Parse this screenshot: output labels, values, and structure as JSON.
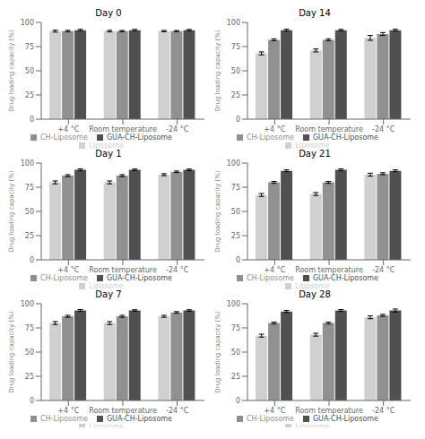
{
  "chart_data": [
    {
      "type": "bar",
      "title": "Day 0",
      "categories": [
        "+4 °C",
        "Room temperature",
        "-24 °C"
      ],
      "ylabel": "Drug loading capacity (%)",
      "ylim": [
        0,
        100
      ],
      "yticks": [
        0,
        25,
        50,
        75,
        100
      ],
      "grid": false,
      "legend": "bottom",
      "series": [
        {
          "name": "Liposome",
          "color": "#d0d0d0",
          "values": [
            91,
            91,
            91
          ],
          "errors": [
            1.0,
            0.8,
            0.7
          ]
        },
        {
          "name": "CH-Liposome",
          "color": "#909090",
          "values": [
            91,
            91,
            91
          ],
          "errors": [
            0.8,
            0.7,
            0.6
          ]
        },
        {
          "name": "GUA-CH-Liposome",
          "color": "#505050",
          "values": [
            92,
            92,
            92
          ],
          "errors": [
            0.9,
            0.8,
            0.7
          ]
        }
      ]
    },
    {
      "type": "bar",
      "title": "Day 14",
      "categories": [
        "+4 °C",
        "Room temperature",
        "-24 °C"
      ],
      "ylabel": "Drug loading capacity (%)",
      "ylim": [
        0,
        100
      ],
      "yticks": [
        0,
        25,
        50,
        75,
        100
      ],
      "grid": false,
      "legend": "bottom",
      "series": [
        {
          "name": "Liposome",
          "color": "#d0d0d0",
          "values": [
            68,
            71,
            84
          ],
          "errors": [
            1.5,
            1.5,
            2.5
          ]
        },
        {
          "name": "CH-Liposome",
          "color": "#909090",
          "values": [
            82,
            82,
            88
          ],
          "errors": [
            1.0,
            1.0,
            1.5
          ]
        },
        {
          "name": "GUA-CH-Liposome",
          "color": "#505050",
          "values": [
            92,
            92,
            92
          ],
          "errors": [
            1.0,
            0.8,
            1.0
          ]
        }
      ]
    },
    {
      "type": "bar",
      "title": "Day 1",
      "categories": [
        "+4 °C",
        "Room temperature",
        "-24 °C"
      ],
      "ylabel": "Drug loading capacity (%)",
      "ylim": [
        0,
        100
      ],
      "yticks": [
        0,
        25,
        50,
        75,
        100
      ],
      "grid": false,
      "legend": "bottom",
      "series": [
        {
          "name": "Liposome",
          "color": "#d0d0d0",
          "values": [
            80,
            80,
            88
          ],
          "errors": [
            1.5,
            1.5,
            1.0
          ]
        },
        {
          "name": "CH-Liposome",
          "color": "#909090",
          "values": [
            87,
            87,
            91
          ],
          "errors": [
            1.0,
            1.0,
            0.8
          ]
        },
        {
          "name": "GUA-CH-Liposome",
          "color": "#505050",
          "values": [
            93,
            93,
            93
          ],
          "errors": [
            1.0,
            0.8,
            0.8
          ]
        }
      ]
    },
    {
      "type": "bar",
      "title": "Day 21",
      "categories": [
        "+4 °C",
        "Room temperature",
        "-24 °C"
      ],
      "ylabel": "Drug loading capacity (%)",
      "ylim": [
        0,
        100
      ],
      "yticks": [
        0,
        25,
        50,
        75,
        100
      ],
      "grid": false,
      "legend": "bottom",
      "series": [
        {
          "name": "Liposome",
          "color": "#d0d0d0",
          "values": [
            67,
            68,
            88
          ],
          "errors": [
            1.5,
            1.5,
            1.5
          ]
        },
        {
          "name": "CH-Liposome",
          "color": "#909090",
          "values": [
            80,
            80,
            89
          ],
          "errors": [
            1.0,
            1.0,
            1.0
          ]
        },
        {
          "name": "GUA-CH-Liposome",
          "color": "#505050",
          "values": [
            92,
            93,
            92
          ],
          "errors": [
            1.0,
            1.0,
            1.0
          ]
        }
      ]
    },
    {
      "type": "bar",
      "title": "Day 7",
      "categories": [
        "+4 °C",
        "Room temperature",
        "-24 °C"
      ],
      "ylabel": "Drug loading capacity (%)",
      "ylim": [
        0,
        100
      ],
      "yticks": [
        0,
        25,
        50,
        75,
        100
      ],
      "grid": false,
      "legend": "bottom",
      "series": [
        {
          "name": "Liposome",
          "color": "#d0d0d0",
          "values": [
            80,
            80,
            87
          ],
          "errors": [
            1.5,
            1.5,
            1.0
          ]
        },
        {
          "name": "CH-Liposome",
          "color": "#909090",
          "values": [
            87,
            87,
            91
          ],
          "errors": [
            1.0,
            1.0,
            0.8
          ]
        },
        {
          "name": "GUA-CH-Liposome",
          "color": "#505050",
          "values": [
            93,
            93,
            93
          ],
          "errors": [
            1.0,
            0.8,
            0.8
          ]
        }
      ]
    },
    {
      "type": "bar",
      "title": "Day 28",
      "categories": [
        "+4 °C",
        "Room temperature",
        "-24 °C"
      ],
      "ylabel": "Drug loading capacity (%)",
      "ylim": [
        0,
        100
      ],
      "yticks": [
        0,
        25,
        50,
        75,
        100
      ],
      "grid": false,
      "legend": "bottom",
      "series": [
        {
          "name": "Liposome",
          "color": "#d0d0d0",
          "values": [
            67,
            68,
            86
          ],
          "errors": [
            1.5,
            1.5,
            1.5
          ]
        },
        {
          "name": "CH-Liposome",
          "color": "#909090",
          "values": [
            80,
            80,
            88
          ],
          "errors": [
            1.0,
            1.0,
            1.0
          ]
        },
        {
          "name": "GUA-CH-Liposome",
          "color": "#505050",
          "values": [
            92,
            93,
            93
          ],
          "errors": [
            1.0,
            1.0,
            1.5
          ]
        }
      ]
    }
  ]
}
